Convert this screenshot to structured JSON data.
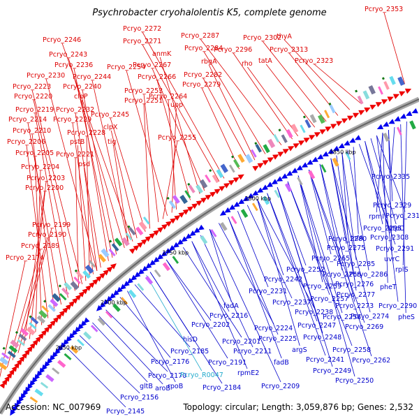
{
  "title": "Psychrobacter cryohalolentis K5, complete genome",
  "accession_label": "Accession: NC_007969",
  "summary_label": "Topology: circular; Length: 3,059,876 bp; Genes: 2,532",
  "colors": {
    "forward_arrow": "#ee0000",
    "reverse_arrow": "#0000ee",
    "backbone": "#888888",
    "forward_label": "#dd0000",
    "reverse_label": "#0000cc",
    "rna_label": "#22aacc"
  },
  "kbp_marks": [
    "2650 kbp",
    "2700 kbp",
    "2750 kbp",
    "2800 kbp",
    "2850 kbp"
  ],
  "forward_labels": [
    "Pcryo_2353",
    "Pcryo_2272",
    "Pcryo_2287",
    "Pcryo_2302",
    "thyA",
    "Pcryo_2246",
    "Pcryo_2271",
    "Pcryo_2284",
    "Pcryo_2296",
    "Pcryo_2313",
    "anmK",
    "Pcryo_2243",
    "Pcryo_2267",
    "rbgA",
    "Pcryo_2323",
    "Pcryo_2236",
    "Pcryo_2254",
    "rho",
    "tatA",
    "Pcryo_2230",
    "Pcryo_2244",
    "Pcryo_2282",
    "Pcryo_2266",
    "Pcryo_2279",
    "Pcryo_2223",
    "Pcryo_2240",
    "Pcryo_2253",
    "Pcryo_2220",
    "clpP",
    "Pcryo_2251",
    "Pcryo_2264",
    "upp",
    "Pcryo_2219",
    "Pcryo_2232",
    "Pcryo_2245",
    "Pcryo_2214",
    "Pcryo_2229",
    "clpX",
    "Pcryo_2210",
    "Pcryo_2228",
    "Pcryo_2206",
    "pstB",
    "tig",
    "Pcryo_2255",
    "Pcryo_2205",
    "Pcryo_2221",
    "psd",
    "Pcryo_2204",
    "Pcryo_2203",
    "Pcryo_2200",
    "Pcryo_2199",
    "Pcryo_2190",
    "Pcryo_2189",
    "Pcryo_2174"
  ],
  "reverse_labels": [
    "Pcryo_2335",
    "Pcryo_2329",
    "rpmI",
    "Pcryo_2312",
    "Pcryo_2295",
    "atpC",
    "Pcryo_2280",
    "infA",
    "Pcryo_2308",
    "Pcryo_2275",
    "Pcryo_2291",
    "uvrC",
    "Pcryo_2265",
    "Pcryo_2285",
    "rplS",
    "Pcryo_2252",
    "Pcryo_2268",
    "Pcryo_2286",
    "Pcryo_2242",
    "Pcryo_2259",
    "Pcryo_2276",
    "pheT",
    "Pcryo_2231",
    "Pcryo_2277",
    "Pcryo_2237",
    "Pcryo_2257",
    "Pcryo_2273",
    "Pcryo_2290",
    "fadA",
    "Pcryo_2238",
    "Pcryo_2256",
    "Pcryo_2274",
    "Pcryo_2216",
    "pheS",
    "Pcryo_2202",
    "Pcryo_2224",
    "Pcryo_2247",
    "Pcryo_2269",
    "Pcryo_2225",
    "Pcryo_2248",
    "hisD",
    "Pcryo_2201",
    "argS",
    "Pcryo_2185",
    "Pcryo_2211",
    "Pcryo_2258",
    "Pcryo_2176",
    "Pcryo_2191",
    "fadB",
    "Pcryo_2241",
    "Pcryo_2262",
    "Pcryo_2170",
    "rpmE2",
    "Pcryo_2249",
    "rpoB",
    "Pcryo_2184",
    "Pcryo_2209",
    "Pcryo_2250",
    "gltB",
    "aroB",
    "Pcryo_2156",
    "Pcryo_2145"
  ],
  "rna_labels": [
    "Pcryo_R0047"
  ]
}
